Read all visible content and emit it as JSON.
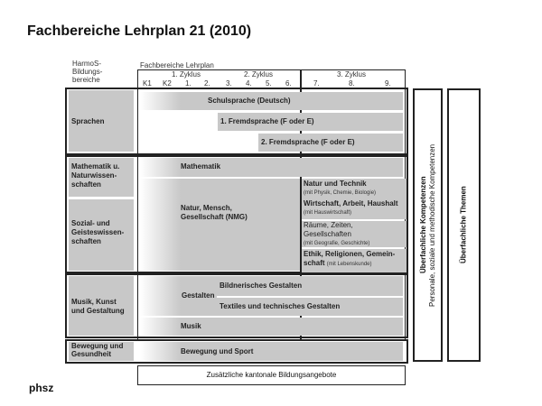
{
  "title": "Fachbereiche Lehrplan 21 (2010)",
  "header": {
    "harmos": [
      "HarmoS-",
      "Bildungs-",
      "bereiche"
    ],
    "fachbereiche": "Fachbereiche Lehrplan",
    "zyklen": [
      "1. Zyklus",
      "2. Zyklus",
      "3. Zyklus"
    ],
    "grades": [
      "K1",
      "K2",
      "1.",
      "2.",
      "3.",
      "4.",
      "5.",
      "6.",
      "7.",
      "8.",
      "9."
    ]
  },
  "domains": {
    "sprachen": "Sprachen",
    "math": "Mathematik u. Naturwissen-schaften",
    "sozial": "Sozial- und Geisteswissen-schaften",
    "musik": "Musik, Kunst und Gestaltung",
    "bewegung": "Bewegung und Gesundheit"
  },
  "subjects": {
    "schulsprache": "Schulsprache (Deutsch)",
    "fremd1": "1. Fremdsprache (F oder E)",
    "fremd2": "2. Fremdsprache (F oder E)",
    "mathematik": "Mathematik",
    "nmg": "Natur, Mensch, Gesellschaft (NMG)",
    "nt": "Natur und Technik",
    "nt_sub": "(mit Physik, Chemie, Biologie)",
    "wah": "Wirtschaft, Arbeit, Haushalt",
    "wah_sub": "(mit Hauswirtschaft)",
    "rzg": "Räume, Zeiten, Gesellschaften",
    "rzg_sub": "(mit Geografie, Geschichte)",
    "erg": "Ethik, Religionen, Gemein-schaft",
    "erg_sub": "(mit Lebenskunde)",
    "gestalten": "Gestalten",
    "bg": "Bildnerisches Gestalten",
    "ttg": "Textiles und technisches Gestalten",
    "musik": "Musik",
    "sport": "Bewegung und Sport"
  },
  "kantonal": "Zusätzliche kantonale Bildungsangebote",
  "ueberfachlich": {
    "kompetenzen": "Überfachliche Kompetenzen",
    "kompetenzen_sub": "Personale, soziale und methodische Kompetenzen",
    "themen": "Überfachliche Themen"
  },
  "footer": "phsz"
}
